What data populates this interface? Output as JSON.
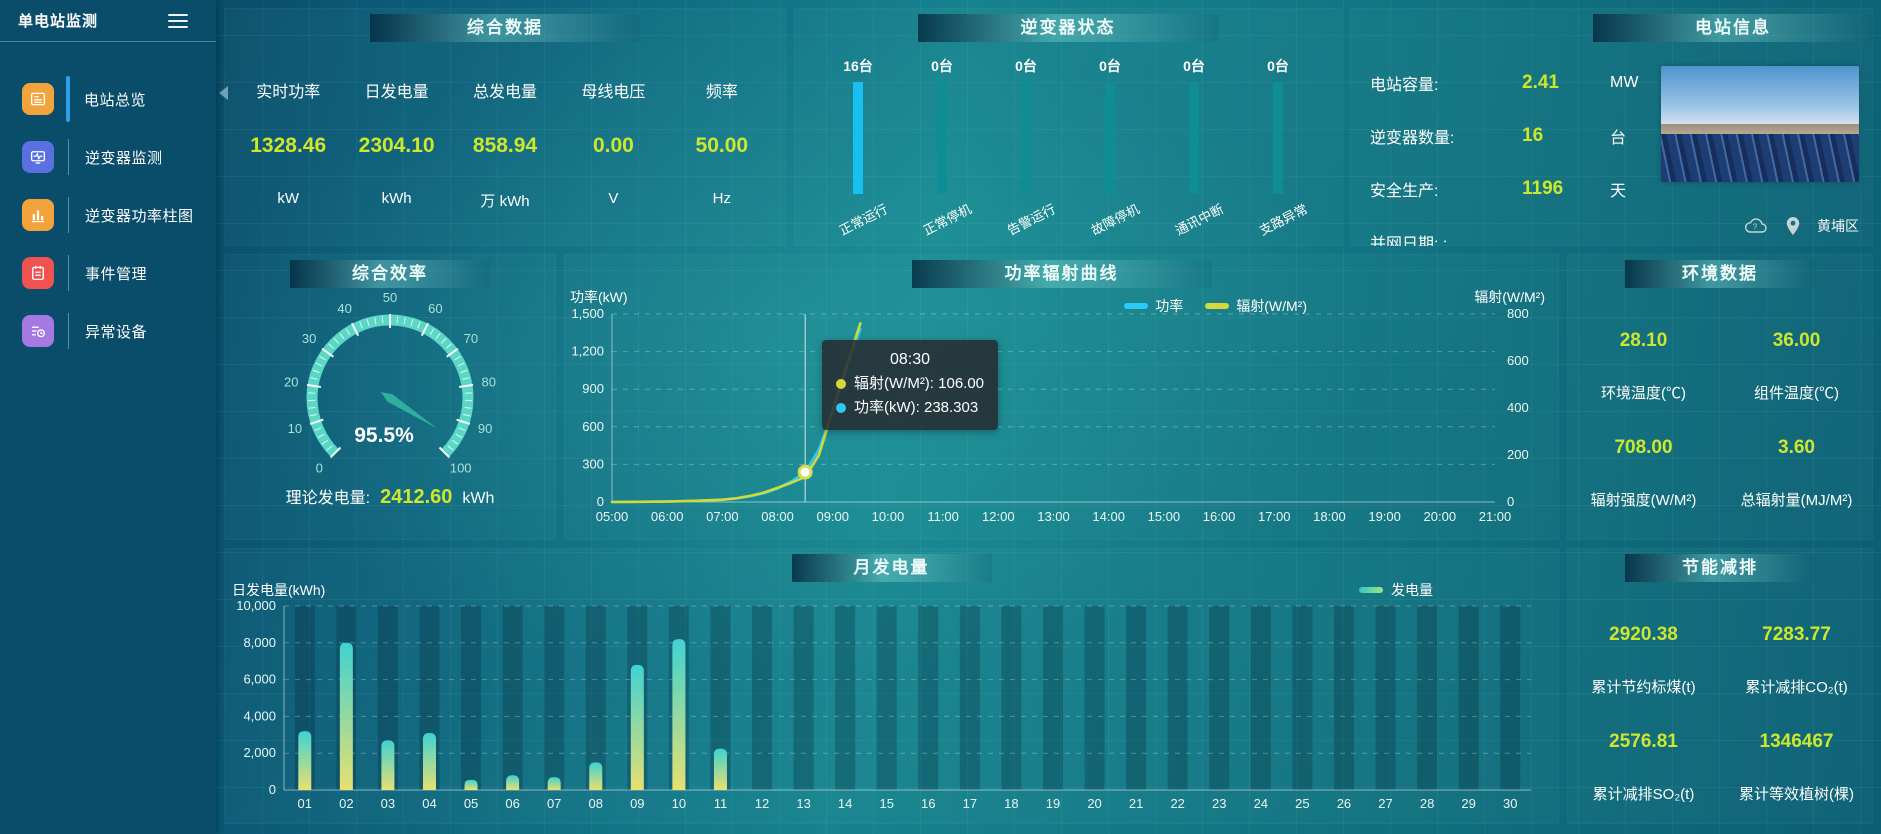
{
  "app": {
    "title": "单电站监测"
  },
  "sidebar": {
    "items": [
      {
        "label": "电站总览",
        "icon": "overview-icon",
        "color": "#f2a33c",
        "active": true
      },
      {
        "label": "逆变器监测",
        "icon": "inverter-monitor-icon",
        "color": "#5a6fe0",
        "active": false
      },
      {
        "label": "逆变器功率柱图",
        "icon": "power-bars-icon",
        "color": "#f2a33c",
        "active": false
      },
      {
        "label": "事件管理",
        "icon": "event-icon",
        "color": "#ef5350",
        "active": false
      },
      {
        "label": "异常设备",
        "icon": "abnormal-device-icon",
        "color": "#a678e2",
        "active": false
      }
    ]
  },
  "colors": {
    "value_yellow": "#cde62e",
    "power_blue": "#2fc8f5",
    "radiation_yellow": "#d4d93a",
    "bar_bright_blue": "#17c0f0",
    "bar_teal": "#0f8d94",
    "gauge_arc": "#5bd8c5"
  },
  "panels": {
    "summary": {
      "title": "综合数据",
      "metrics": [
        {
          "label": "实时功率",
          "value": "1328.46",
          "unit": "kW"
        },
        {
          "label": "日发电量",
          "value": "2304.10",
          "unit": "kWh"
        },
        {
          "label": "总发电量",
          "value": "858.94",
          "unit": "万 kWh"
        },
        {
          "label": "母线电压",
          "value": "0.00",
          "unit": "V"
        },
        {
          "label": "频率",
          "value": "50.00",
          "unit": "Hz"
        }
      ]
    },
    "inverter_status": {
      "title": "逆变器状态",
      "bars": [
        {
          "count": "16台",
          "label": "正常运行"
        },
        {
          "count": "0台",
          "label": "正常停机"
        },
        {
          "count": "0台",
          "label": "告警运行"
        },
        {
          "count": "0台",
          "label": "故障停机"
        },
        {
          "count": "0台",
          "label": "通讯中断"
        },
        {
          "count": "0台",
          "label": "支路异常"
        }
      ]
    },
    "station_info": {
      "title": "电站信息",
      "rows": [
        {
          "label": "电站容量:",
          "value": "2.41",
          "unit": "MW"
        },
        {
          "label": "逆变器数量:",
          "value": "16",
          "unit": "台"
        },
        {
          "label": "安全生产:",
          "value": "1196",
          "unit": "天"
        },
        {
          "label": "并网日期: :",
          "value": "",
          "unit": ""
        }
      ],
      "location": "黄埔区"
    },
    "efficiency": {
      "title": "综合效率",
      "footer_label": "理论发电量:",
      "footer_value": "2412.60",
      "footer_unit": "kWh"
    },
    "curve": {
      "title": "功率辐射曲线"
    },
    "environment": {
      "title": "环境数据",
      "cells": [
        {
          "value": "28.10",
          "label": "环境温度(℃)"
        },
        {
          "value": "36.00",
          "label": "组件温度(℃)"
        },
        {
          "value": "708.00",
          "label": "辐射强度(W/M²)"
        },
        {
          "value": "3.60",
          "label": "总辐射量(MJ/M²)"
        }
      ]
    },
    "monthly": {
      "title": "月发电量"
    },
    "saving": {
      "title": "节能减排",
      "cells": [
        {
          "value": "2920.38",
          "label": "累计节约标煤(t)"
        },
        {
          "value": "7283.77",
          "label": "累计减排CO₂(t)"
        },
        {
          "value": "2576.81",
          "label": "累计减排SO₂(t)"
        },
        {
          "value": "1346467",
          "label": "累计等效植树(棵)"
        }
      ]
    }
  },
  "chart_data": [
    {
      "type": "gauge",
      "title": "综合效率",
      "min": 0,
      "max": 100,
      "value": 95.5,
      "value_label": "95.5%",
      "tick_labels": [
        0,
        10,
        20,
        30,
        40,
        50,
        60,
        70,
        80,
        90,
        100
      ],
      "arc_color": "#5bd8c5",
      "pointer_color": "#2fae9d"
    },
    {
      "type": "line",
      "title": "功率辐射曲线",
      "x_ticks": [
        "05:00",
        "06:00",
        "07:00",
        "08:00",
        "09:00",
        "10:00",
        "11:00",
        "12:00",
        "13:00",
        "14:00",
        "15:00",
        "16:00",
        "17:00",
        "18:00",
        "19:00",
        "20:00",
        "21:00"
      ],
      "x_range_minutes": [
        300,
        1260
      ],
      "left_axis": {
        "name": "功率(kW)",
        "max": 1500,
        "ticks": [
          0,
          300,
          600,
          900,
          1200,
          1500
        ],
        "tick_labels": [
          "0",
          "300",
          "600",
          "900",
          "1,200",
          "1,500"
        ]
      },
      "right_axis": {
        "name": "辐射(W/M²)",
        "max": 800,
        "ticks": [
          0,
          200,
          400,
          600,
          800
        ],
        "tick_labels": [
          "0",
          "200",
          "400",
          "600",
          "800"
        ]
      },
      "legend_position": "top-right",
      "grid": "dashed",
      "series": [
        {
          "name": "功率",
          "color": "#2fc8f5",
          "axis": "left",
          "points": [
            [
              300,
              0
            ],
            [
              330,
              2
            ],
            [
              360,
              4
            ],
            [
              390,
              8
            ],
            [
              420,
              18
            ],
            [
              435,
              28
            ],
            [
              450,
              45
            ],
            [
              465,
              70
            ],
            [
              480,
              108
            ],
            [
              495,
              165
            ],
            [
              510,
              238.303
            ],
            [
              525,
              420
            ],
            [
              540,
              720
            ],
            [
              555,
              1060
            ],
            [
              570,
              1380
            ]
          ]
        },
        {
          "name": "辐射(W/M²)",
          "color": "#d4d93a",
          "axis": "right",
          "points": [
            [
              300,
              0
            ],
            [
              330,
              1
            ],
            [
              360,
              2
            ],
            [
              390,
              5
            ],
            [
              420,
              10
            ],
            [
              435,
              16
            ],
            [
              450,
              26
            ],
            [
              465,
              40
            ],
            [
              480,
              60
            ],
            [
              495,
              82
            ],
            [
              510,
              106
            ],
            [
              525,
              200
            ],
            [
              540,
              390
            ],
            [
              555,
              580
            ],
            [
              570,
              760
            ]
          ]
        }
      ],
      "highlight": {
        "x_minutes": 510,
        "series": "功率",
        "value": 238.303
      },
      "tooltip": {
        "time": "08:30",
        "rows": [
          {
            "color": "#d4d93a",
            "text": "辐射(W/M²): 106.00"
          },
          {
            "color": "#2fc8f5",
            "text": "功率(kW): 238.303"
          }
        ]
      }
    },
    {
      "type": "bar",
      "title": "月发电量",
      "ylabel": "日发电量(kWh)",
      "legend": "发电量",
      "categories": [
        "01",
        "02",
        "03",
        "04",
        "05",
        "06",
        "07",
        "08",
        "09",
        "10",
        "11",
        "12",
        "13",
        "14",
        "15",
        "16",
        "17",
        "18",
        "19",
        "20",
        "21",
        "22",
        "23",
        "24",
        "25",
        "26",
        "27",
        "28",
        "29",
        "30"
      ],
      "values": [
        3200,
        8000,
        2700,
        3100,
        550,
        800,
        700,
        1500,
        6800,
        8200,
        2250,
        0,
        0,
        0,
        0,
        0,
        0,
        0,
        0,
        0,
        0,
        0,
        0,
        0,
        0,
        0,
        0,
        0,
        0,
        0
      ],
      "ylim": [
        0,
        10000
      ],
      "ytick_labels": [
        "0",
        "2,000",
        "4,000",
        "6,000",
        "8,000",
        "10,000"
      ],
      "grid": "dashed",
      "bar_gradient": [
        "#3fd2d2",
        "#e8e070"
      ]
    },
    {
      "type": "bar",
      "title": "逆变器状态",
      "categories": [
        "正常运行",
        "正常停机",
        "告警运行",
        "故障停机",
        "通讯中断",
        "支路异常"
      ],
      "values": [
        16,
        0,
        0,
        0,
        0,
        0
      ],
      "unit": "台"
    }
  ]
}
